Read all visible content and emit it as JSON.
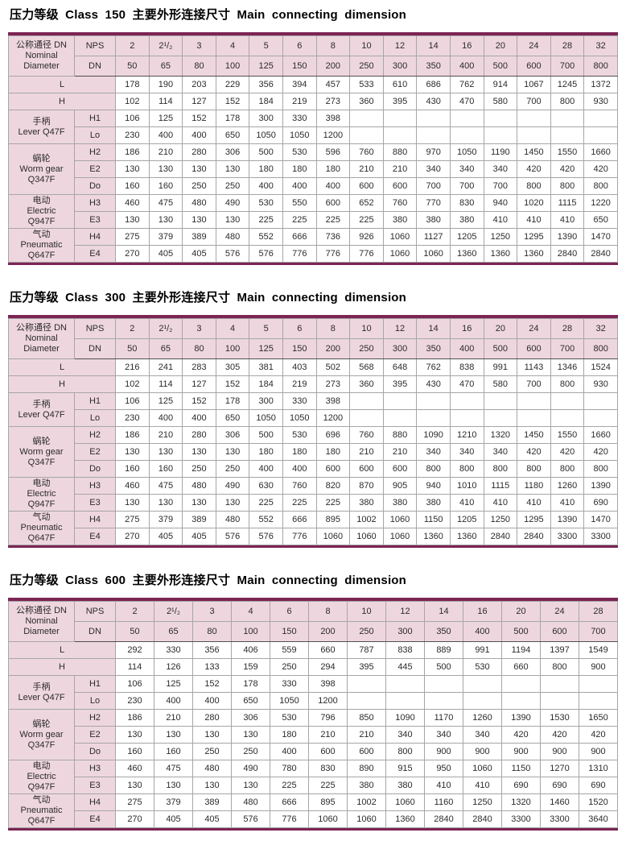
{
  "page": {
    "background": "#ffffff"
  },
  "colors": {
    "header_pink": "#eed6df",
    "accent_line": "#7d2454",
    "grid_line": "#a6a6a6",
    "group_line": "#4f4f4f",
    "text": "#2b2b2b"
  },
  "tables": [
    {
      "title": "压力等级 Class 150  主要外形连接尺寸  Main  connecting  dimension",
      "header": {
        "corner": [
          "公称通径 DN",
          "Nominal",
          "Diameter"
        ]
      },
      "nps": {
        "label": "NPS",
        "values": [
          "2",
          "2¹/₂",
          "3",
          "4",
          "5",
          "6",
          "8",
          "10",
          "12",
          "14",
          "16",
          "20",
          "24",
          "28",
          "32"
        ]
      },
      "dn": {
        "label": "DN",
        "values": [
          "50",
          "65",
          "80",
          "100",
          "125",
          "150",
          "200",
          "250",
          "300",
          "350",
          "400",
          "500",
          "600",
          "700",
          "800"
        ]
      },
      "simple_rows": [
        {
          "label": "L",
          "values": [
            "178",
            "190",
            "203",
            "229",
            "356",
            "394",
            "457",
            "533",
            "610",
            "686",
            "762",
            "914",
            "1067",
            "1245",
            "1372"
          ]
        },
        {
          "label": "H",
          "values": [
            "102",
            "114",
            "127",
            "152",
            "184",
            "219",
            "273",
            "360",
            "395",
            "430",
            "470",
            "580",
            "700",
            "800",
            "930"
          ]
        }
      ],
      "groups": [
        {
          "name": "lever",
          "label": [
            "手柄",
            "Lever Q47F"
          ],
          "rows": [
            {
              "label": "H1",
              "values": [
                "106",
                "125",
                "152",
                "178",
                "300",
                "330",
                "398",
                "",
                "",
                "",
                "",
                "",
                "",
                "",
                ""
              ]
            },
            {
              "label": "Lo",
              "values": [
                "230",
                "400",
                "400",
                "650",
                "1050",
                "1050",
                "1200",
                "",
                "",
                "",
                "",
                "",
                "",
                "",
                ""
              ]
            }
          ]
        },
        {
          "name": "worm-gear",
          "label": [
            "蜗轮",
            "Worm gear",
            "Q347F"
          ],
          "rows": [
            {
              "label": "H2",
              "values": [
                "186",
                "210",
                "280",
                "306",
                "500",
                "530",
                "596",
                "760",
                "880",
                "970",
                "1050",
                "1190",
                "1450",
                "1550",
                "1660"
              ]
            },
            {
              "label": "E2",
              "values": [
                "130",
                "130",
                "130",
                "130",
                "180",
                "180",
                "180",
                "210",
                "210",
                "340",
                "340",
                "340",
                "420",
                "420",
                "420"
              ]
            },
            {
              "label": "Do",
              "values": [
                "160",
                "160",
                "250",
                "250",
                "400",
                "400",
                "400",
                "600",
                "600",
                "700",
                "700",
                "700",
                "800",
                "800",
                "800"
              ]
            }
          ]
        },
        {
          "name": "electric",
          "label": [
            "电动",
            "Electric",
            "Q947F"
          ],
          "rows": [
            {
              "label": "H3",
              "values": [
                "460",
                "475",
                "480",
                "490",
                "530",
                "550",
                "600",
                "652",
                "760",
                "770",
                "830",
                "940",
                "1020",
                "1115",
                "1220"
              ]
            },
            {
              "label": "E3",
              "values": [
                "130",
                "130",
                "130",
                "130",
                "225",
                "225",
                "225",
                "225",
                "380",
                "380",
                "380",
                "410",
                "410",
                "410",
                "650"
              ]
            }
          ]
        },
        {
          "name": "pneumatic",
          "label": [
            "气动",
            "Pneumatic",
            "Q647F"
          ],
          "rows": [
            {
              "label": "H4",
              "values": [
                "275",
                "379",
                "389",
                "480",
                "552",
                "666",
                "736",
                "926",
                "1060",
                "1127",
                "1205",
                "1250",
                "1295",
                "1390",
                "1470"
              ]
            },
            {
              "label": "E4",
              "values": [
                "270",
                "405",
                "405",
                "576",
                "576",
                "776",
                "776",
                "776",
                "1060",
                "1060",
                "1360",
                "1360",
                "1360",
                "2840",
                "2840"
              ]
            }
          ]
        }
      ]
    },
    {
      "title": "压力等级 Class 300 主要外形连接尺寸  Main  connecting  dimension",
      "header": {
        "corner": [
          "公称通径 DN",
          "Nominal",
          "Diameter"
        ]
      },
      "nps": {
        "label": "NPS",
        "values": [
          "2",
          "2¹/₂",
          "3",
          "4",
          "5",
          "6",
          "8",
          "10",
          "12",
          "14",
          "16",
          "20",
          "24",
          "28",
          "32"
        ]
      },
      "dn": {
        "label": "DN",
        "values": [
          "50",
          "65",
          "80",
          "100",
          "125",
          "150",
          "200",
          "250",
          "300",
          "350",
          "400",
          "500",
          "600",
          "700",
          "800"
        ]
      },
      "simple_rows": [
        {
          "label": "L",
          "values": [
            "216",
            "241",
            "283",
            "305",
            "381",
            "403",
            "502",
            "568",
            "648",
            "762",
            "838",
            "991",
            "1143",
            "1346",
            "1524"
          ]
        },
        {
          "label": "H",
          "values": [
            "102",
            "114",
            "127",
            "152",
            "184",
            "219",
            "273",
            "360",
            "395",
            "430",
            "470",
            "580",
            "700",
            "800",
            "930"
          ]
        }
      ],
      "groups": [
        {
          "name": "lever",
          "label": [
            "手柄",
            "Lever Q47F"
          ],
          "rows": [
            {
              "label": "H1",
              "values": [
                "106",
                "125",
                "152",
                "178",
                "300",
                "330",
                "398",
                "",
                "",
                "",
                "",
                "",
                "",
                "",
                ""
              ]
            },
            {
              "label": "Lo",
              "values": [
                "230",
                "400",
                "400",
                "650",
                "1050",
                "1050",
                "1200",
                "",
                "",
                "",
                "",
                "",
                "",
                "",
                ""
              ]
            }
          ]
        },
        {
          "name": "worm-gear",
          "label": [
            "蜗轮",
            "Worm gear",
            "Q347F"
          ],
          "rows": [
            {
              "label": "H2",
              "values": [
                "186",
                "210",
                "280",
                "306",
                "500",
                "530",
                "696",
                "760",
                "880",
                "1090",
                "1210",
                "1320",
                "1450",
                "1550",
                "1660"
              ]
            },
            {
              "label": "E2",
              "values": [
                "130",
                "130",
                "130",
                "130",
                "180",
                "180",
                "180",
                "210",
                "210",
                "340",
                "340",
                "340",
                "420",
                "420",
                "420"
              ]
            },
            {
              "label": "Do",
              "values": [
                "160",
                "160",
                "250",
                "250",
                "400",
                "400",
                "600",
                "600",
                "600",
                "800",
                "800",
                "800",
                "800",
                "800",
                "800"
              ]
            }
          ]
        },
        {
          "name": "electric",
          "label": [
            "电动",
            "Electric",
            "Q947F"
          ],
          "rows": [
            {
              "label": "H3",
              "values": [
                "460",
                "475",
                "480",
                "490",
                "630",
                "760",
                "820",
                "870",
                "905",
                "940",
                "1010",
                "1115",
                "1180",
                "1260",
                "1390"
              ]
            },
            {
              "label": "E3",
              "values": [
                "130",
                "130",
                "130",
                "130",
                "225",
                "225",
                "225",
                "380",
                "380",
                "380",
                "410",
                "410",
                "410",
                "410",
                "690"
              ]
            }
          ]
        },
        {
          "name": "pneumatic",
          "label": [
            "气动",
            "Pneumatic",
            "Q647F"
          ],
          "rows": [
            {
              "label": "H4",
              "values": [
                "275",
                "379",
                "389",
                "480",
                "552",
                "666",
                "895",
                "1002",
                "1060",
                "1150",
                "1205",
                "1250",
                "1295",
                "1390",
                "1470"
              ]
            },
            {
              "label": "E4",
              "values": [
                "270",
                "405",
                "405",
                "576",
                "576",
                "776",
                "1060",
                "1060",
                "1060",
                "1360",
                "1360",
                "2840",
                "2840",
                "3300",
                "3300"
              ]
            }
          ]
        }
      ]
    },
    {
      "title": "压力等级 Class 600 主要外形连接尺寸  Main  connecting  dimension",
      "header": {
        "corner": [
          "公称通径 DN",
          "Nominal",
          "Diameter"
        ]
      },
      "nps": {
        "label": "NPS",
        "values": [
          "2",
          "2¹/₂",
          "3",
          "4",
          "6",
          "8",
          "10",
          "12",
          "14",
          "16",
          "20",
          "24",
          "28"
        ]
      },
      "dn": {
        "label": "DN",
        "values": [
          "50",
          "65",
          "80",
          "100",
          "150",
          "200",
          "250",
          "300",
          "350",
          "400",
          "500",
          "600",
          "700"
        ]
      },
      "simple_rows": [
        {
          "label": "L",
          "values": [
            "292",
            "330",
            "356",
            "406",
            "559",
            "660",
            "787",
            "838",
            "889",
            "991",
            "1194",
            "1397",
            "1549"
          ]
        },
        {
          "label": "H",
          "values": [
            "114",
            "126",
            "133",
            "159",
            "250",
            "294",
            "395",
            "445",
            "500",
            "530",
            "660",
            "800",
            "900"
          ]
        }
      ],
      "groups": [
        {
          "name": "lever",
          "label": [
            "手柄",
            "Lever Q47F"
          ],
          "rows": [
            {
              "label": "H1",
              "values": [
                "106",
                "125",
                "152",
                "178",
                "330",
                "398",
                "",
                "",
                "",
                "",
                "",
                "",
                ""
              ]
            },
            {
              "label": "Lo",
              "values": [
                "230",
                "400",
                "400",
                "650",
                "1050",
                "1200",
                "",
                "",
                "",
                "",
                "",
                "",
                ""
              ]
            }
          ]
        },
        {
          "name": "worm-gear",
          "label": [
            "蜗轮",
            "Worm gear",
            "Q347F"
          ],
          "rows": [
            {
              "label": "H2",
              "values": [
                "186",
                "210",
                "280",
                "306",
                "530",
                "796",
                "850",
                "1090",
                "1170",
                "1260",
                "1390",
                "1530",
                "1650"
              ]
            },
            {
              "label": "E2",
              "values": [
                "130",
                "130",
                "130",
                "130",
                "180",
                "210",
                "210",
                "340",
                "340",
                "340",
                "420",
                "420",
                "420"
              ]
            },
            {
              "label": "Do",
              "values": [
                "160",
                "160",
                "250",
                "250",
                "400",
                "600",
                "600",
                "800",
                "900",
                "900",
                "900",
                "900",
                "900"
              ]
            }
          ]
        },
        {
          "name": "electric",
          "label": [
            "电动",
            "Electric",
            "Q947F"
          ],
          "rows": [
            {
              "label": "H3",
              "values": [
                "460",
                "475",
                "480",
                "490",
                "780",
                "830",
                "890",
                "915",
                "950",
                "1060",
                "1150",
                "1270",
                "1310"
              ]
            },
            {
              "label": "E3",
              "values": [
                "130",
                "130",
                "130",
                "130",
                "225",
                "225",
                "380",
                "380",
                "410",
                "410",
                "690",
                "690",
                "690"
              ]
            }
          ]
        },
        {
          "name": "pneumatic",
          "label": [
            "气动",
            "Pneumatic",
            "Q647F"
          ],
          "rows": [
            {
              "label": "H4",
              "values": [
                "275",
                "379",
                "389",
                "480",
                "666",
                "895",
                "1002",
                "1060",
                "1160",
                "1250",
                "1320",
                "1460",
                "1520"
              ]
            },
            {
              "label": "E4",
              "values": [
                "270",
                "405",
                "405",
                "576",
                "776",
                "1060",
                "1060",
                "1360",
                "2840",
                "2840",
                "3300",
                "3300",
                "3640"
              ]
            }
          ]
        }
      ]
    }
  ]
}
